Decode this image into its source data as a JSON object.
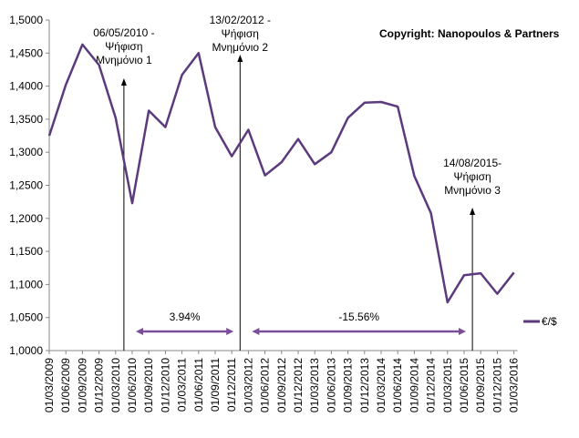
{
  "chart_data": {
    "type": "line",
    "copyright": "Copyright:  Nanopoulos  & Partners",
    "ylim": [
      1.0,
      1.5
    ],
    "y_ticks": [
      "1,0000",
      "1,0500",
      "1,1000",
      "1,1500",
      "1,2000",
      "1,2500",
      "1,3000",
      "1,3500",
      "1,4000",
      "1,4500",
      "1,5000"
    ],
    "x": [
      "01/03/2009",
      "01/06/2009",
      "01/09/2009",
      "01/12/2009",
      "01/03/2010",
      "01/06/2010",
      "01/09/2010",
      "01/12/2010",
      "01/03/2011",
      "01/06/2011",
      "01/09/2011",
      "01/12/2011",
      "01/03/2012",
      "01/06/2012",
      "01/09/2012",
      "01/12/2012",
      "01/03/2013",
      "01/06/2013",
      "01/09/2013",
      "01/12/2013",
      "01/03/2014",
      "01/06/2014",
      "01/09/2014",
      "01/12/2014",
      "01/03/2015",
      "01/06/2015",
      "01/09/2015",
      "01/12/2015",
      "01/03/2016"
    ],
    "series": [
      {
        "name": "€/$",
        "color": "#5b3a7e",
        "values": [
          1.325,
          1.402,
          1.463,
          1.432,
          1.352,
          1.223,
          1.363,
          1.338,
          1.417,
          1.45,
          1.338,
          1.294,
          1.334,
          1.265,
          1.285,
          1.32,
          1.282,
          1.3,
          1.352,
          1.375,
          1.376,
          1.369,
          1.264,
          1.208,
          1.073,
          1.114,
          1.117,
          1.086,
          1.118
        ]
      }
    ],
    "legend": "bottom-right",
    "grid": false,
    "annotations": [
      {
        "date": "06/05/2010",
        "lines": [
          "06/05/2010 -",
          "Ψήφιση",
          "Μνημόνιο 1"
        ],
        "x_index": 4.5
      },
      {
        "date": "13/02/2012",
        "lines": [
          "13/02/2012 -",
          "Ψήφιση",
          "Μνημόνιο 2"
        ],
        "x_index": 11.5
      },
      {
        "date": "14/08/2015",
        "lines": [
          "14/08/2015-",
          "Ψήφιση",
          "Μνημόνιο 3"
        ],
        "x_index": 25.5
      }
    ],
    "ranges": [
      {
        "label": "3.94%",
        "from_index": 5,
        "to_index": 11
      },
      {
        "label": "-15.56%",
        "from_index": 12,
        "to_index": 25
      }
    ],
    "range_color": "#7a4f9a"
  }
}
